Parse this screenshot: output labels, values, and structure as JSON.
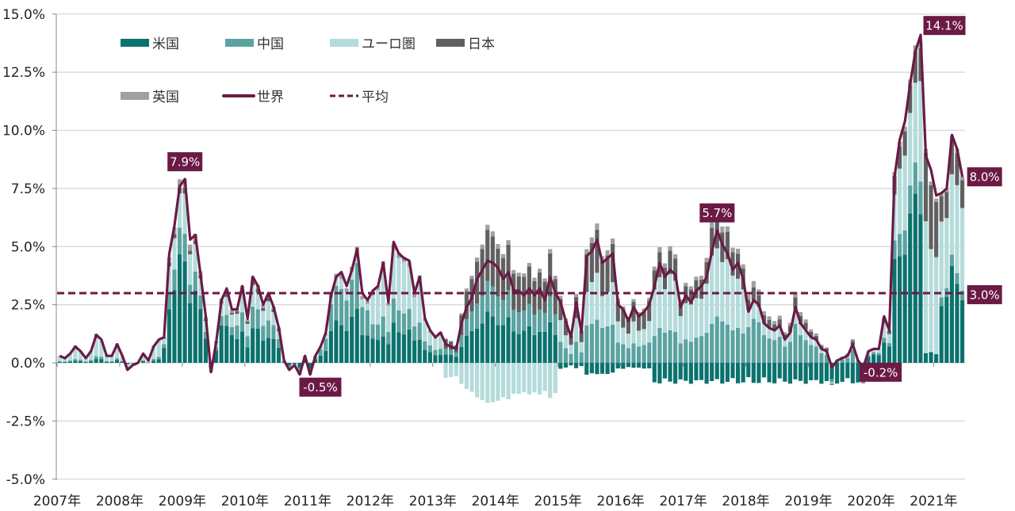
{
  "chart_data": {
    "type": "bar",
    "stacked": true,
    "title": "",
    "xlabel": "",
    "ylabel": "",
    "ylim": [
      -5.0,
      15.0
    ],
    "y_ticks": [
      "-5.0%",
      "-2.5%",
      "0.0%",
      "2.5%",
      "5.0%",
      "7.5%",
      "10.0%",
      "12.5%",
      "15.0%"
    ],
    "y_tick_values": [
      -5,
      -2.5,
      0,
      2.5,
      5,
      7.5,
      10,
      12.5,
      15
    ],
    "x_tick_labels": [
      "2007年",
      "2008年",
      "2009年",
      "2010年",
      "2011年",
      "2012年",
      "2013年",
      "2014年",
      "2015年",
      "2016年",
      "2017年",
      "2018年",
      "2019年",
      "2020年",
      "2021年"
    ],
    "start": "2007-01",
    "months": 174,
    "grid": true,
    "legend_position": "top-left",
    "legend": [
      {
        "name": "米国",
        "type": "bar",
        "color": "#0b726d"
      },
      {
        "name": "中国",
        "type": "bar",
        "color": "#5ba3a0"
      },
      {
        "name": "ユーロ圏",
        "type": "bar",
        "color": "#b5dbdb"
      },
      {
        "name": "日本",
        "type": "bar",
        "color": "#606060"
      },
      {
        "name": "英国",
        "type": "bar",
        "color": "#a0a0a0"
      },
      {
        "name": "世界",
        "type": "line",
        "color": "#6b1a45"
      },
      {
        "name": "平均",
        "type": "dashed",
        "color": "#6b1a45"
      }
    ],
    "world": [
      0.3,
      0.2,
      0.4,
      0.7,
      0.5,
      0.2,
      0.5,
      1.2,
      1.0,
      0.3,
      0.3,
      0.8,
      0.3,
      -0.3,
      -0.1,
      0.0,
      0.4,
      0.1,
      0.7,
      1.0,
      1.1,
      4.7,
      5.9,
      7.6,
      7.9,
      5.3,
      5.5,
      3.8,
      2.0,
      -0.4,
      0.9,
      2.7,
      3.2,
      2.3,
      2.3,
      3.3,
      1.9,
      3.7,
      3.3,
      2.5,
      3.0,
      2.4,
      1.5,
      0.1,
      -0.3,
      -0.1,
      -0.5,
      0.3,
      -0.5,
      0.3,
      0.7,
      1.3,
      2.9,
      3.7,
      3.9,
      3.3,
      4.0,
      4.9,
      3.0,
      2.7,
      3.1,
      3.3,
      4.3,
      2.6,
      5.2,
      4.7,
      4.5,
      4.4,
      3.0,
      3.7,
      1.9,
      1.4,
      1.1,
      1.3,
      0.8,
      0.7,
      0.6,
      1.7,
      2.4,
      2.8,
      3.6,
      4.0,
      4.4,
      4.3,
      4.1,
      3.6,
      3.9,
      3.1,
      3.1,
      2.9,
      3.2,
      2.9,
      3.2,
      2.7,
      3.7,
      3.0,
      2.6,
      1.8,
      1.1,
      2.6,
      1.3,
      4.6,
      4.8,
      5.3,
      4.3,
      4.5,
      4.7,
      2.5,
      2.3,
      1.8,
      2.4,
      2.0,
      2.2,
      2.5,
      3.3,
      4.3,
      3.7,
      4.0,
      3.8,
      2.4,
      2.9,
      2.6,
      3.1,
      3.3,
      3.7,
      4.8,
      5.7,
      5.1,
      4.7,
      4.0,
      4.3,
      3.6,
      2.2,
      2.7,
      2.5,
      1.7,
      1.5,
      1.4,
      1.6,
      1.0,
      1.3,
      2.4,
      1.7,
      1.4,
      1.1,
      1.0,
      0.6,
      0.5,
      -0.2,
      0.1,
      0.2,
      0.3,
      0.8,
      0.1,
      -0.2,
      0.5,
      0.6,
      0.6,
      2.0,
      1.4,
      8.0,
      9.6,
      10.4,
      12.0,
      13.4,
      14.1,
      8.9,
      8.3,
      7.2,
      7.3,
      7.5,
      9.8,
      9.2,
      8.0
    ],
    "average": 3.0,
    "annotations": [
      {
        "label": "7.9%",
        "month_index": 24,
        "value": 7.9
      },
      {
        "label": "-0.5%",
        "month_index": 46,
        "value": -0.5
      },
      {
        "label": "5.7%",
        "month_index": 126,
        "value": 5.7
      },
      {
        "label": "-0.2%",
        "month_index": 154,
        "value": -0.2
      },
      {
        "label": "14.1%",
        "month_index": 165,
        "value": 14.1
      },
      {
        "label": "8.0%",
        "month_index": 173,
        "value": 8.0
      },
      {
        "label": "3.0%",
        "month_index": 173,
        "value": 3.0
      }
    ],
    "series_shares": {
      "note_regimes": [
        {
          "from": 0,
          "us": 0.15,
          "cn": 0.1,
          "eu": 0.7,
          "jp": 0.0,
          "uk": 0.05
        },
        {
          "from": 20,
          "us": 0.55,
          "cn": 0.15,
          "eu": 0.22,
          "jp": 0.03,
          "uk": 0.05
        },
        {
          "from": 34,
          "us": 0.4,
          "cn": 0.25,
          "eu": 0.25,
          "jp": 0.05,
          "uk": 0.05
        },
        {
          "from": 48,
          "us": 0.45,
          "cn": 0.4,
          "eu": 0.1,
          "jp": 0.0,
          "uk": 0.05
        },
        {
          "from": 60,
          "us": 0.3,
          "cn": 0.2,
          "eu": 0.45,
          "jp": 0.0,
          "uk": 0.05
        },
        {
          "from": 74,
          "us": 0.45,
          "cn": 0.3,
          "eu": -0.3,
          "jp": 0.5,
          "uk": 0.05
        },
        {
          "from": 96,
          "us": -0.1,
          "cn": 0.35,
          "eu": 0.35,
          "jp": 0.35,
          "uk": 0.05
        },
        {
          "from": 114,
          "us": -0.2,
          "cn": 0.35,
          "eu": 0.55,
          "jp": 0.25,
          "uk": 0.05
        },
        {
          "from": 132,
          "us": -0.3,
          "cn": 0.7,
          "eu": 0.3,
          "jp": 0.2,
          "uk": 0.1
        },
        {
          "from": 155,
          "us": 0.55,
          "cn": 0.15,
          "eu": 0.25,
          "jp": 0.0,
          "uk": 0.05
        },
        {
          "from": 158,
          "us": 0.5,
          "cn": 0.1,
          "eu": 0.28,
          "jp": 0.1,
          "uk": 0.02
        },
        {
          "from": 166,
          "us": 0.05,
          "cn": 0.0,
          "eu": 0.6,
          "jp": 0.33,
          "uk": 0.02
        },
        {
          "from": 169,
          "us": 0.38,
          "cn": 0.05,
          "eu": 0.4,
          "jp": 0.15,
          "uk": 0.02
        }
      ]
    }
  }
}
